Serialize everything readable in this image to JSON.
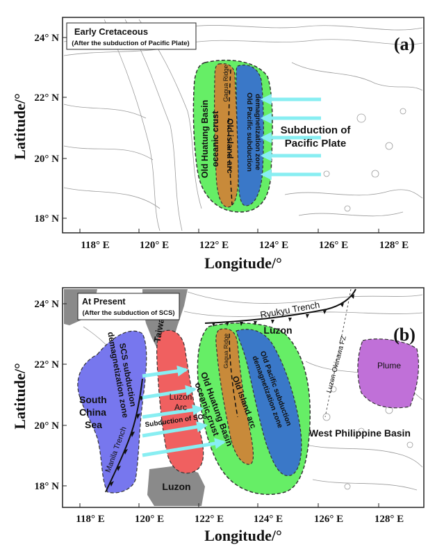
{
  "axes": {
    "x_title": "Longitude/°",
    "y_title": "Latitude/°",
    "x_ticks": [
      "118° E",
      "120° E",
      "122° E",
      "124° E",
      "126° E",
      "128° E"
    ],
    "y_ticks": [
      "24° N",
      "22° N",
      "20° N",
      "18° N"
    ]
  },
  "panel_a": {
    "tag": "(a)",
    "title": "Early Cretaceous",
    "subtitle": "(After the subduction of Pacific Plate)",
    "huatung_line1": "Old Huatung Basin",
    "huatung_line2": "oceanic crust",
    "gagua": "Gagua Ridge",
    "island_arc": "Old island arc",
    "pacific_line1": "Old Pacific subduction",
    "pacific_line2": "demagnetization zone",
    "subduction_line1": "Subduction of",
    "subduction_line2": "Pacific Plate"
  },
  "panel_b": {
    "tag": "(b)",
    "title": "At Present",
    "subtitle": "(After the subduction of SCS)",
    "taiwan": "Taiwan",
    "luzon_land": "Luzon",
    "luzon_trench": "Luzon",
    "ryukyu": "Ryukyu Trench",
    "scs_line1": "South",
    "scs_line2": "China",
    "scs_line3": "Sea",
    "manila": "Manila Trench",
    "scs_zone_line1": "SCS subduction",
    "scs_zone_line2": "demagnetization zone",
    "luzon_arc_line1": "Luzon",
    "luzon_arc_line2": "Arc",
    "subduction_scs": "Subduction of SCS",
    "huatung_line1": "Old Huatung Basin",
    "huatung_line2": "oceanic crust",
    "gagua": "Gagua Ridge",
    "island_arc": "Old island arc",
    "pacific_line1": "Old Pacific subduction",
    "pacific_line2": "demagnetization zone",
    "luzon_okinawa": "Luzon-Okinawa FZ",
    "plume": "Plume",
    "wpb": "West Philippine Basin"
  },
  "colors": {
    "green_zone": "#66ee66",
    "arc_brown": "#c88a3a",
    "pacific_blue": "#3a78c8",
    "scs_purple": "#7777ee",
    "luzon_arc_red": "#f06060",
    "plume_magenta": "#c070d8",
    "arrow_cyan": "#88eef2",
    "land_gray": "#8a8a8a"
  }
}
